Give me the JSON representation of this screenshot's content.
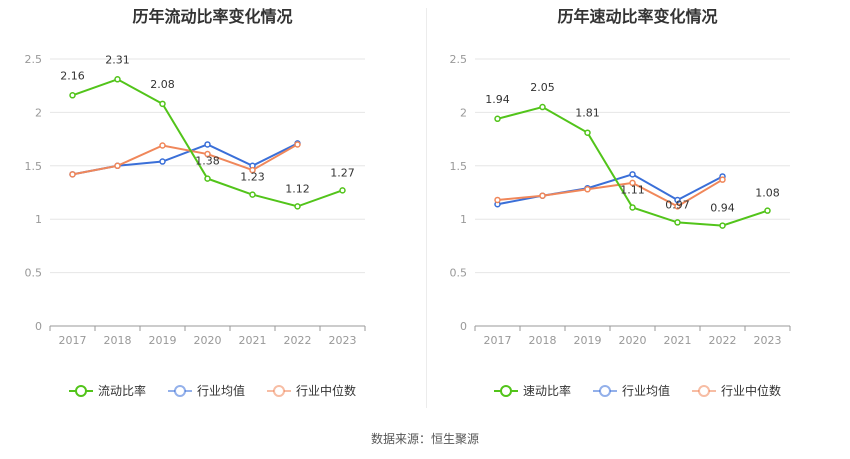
{
  "source_text": "数据来源：恒生聚源",
  "chart_data": [
    {
      "type": "line",
      "title": "历年流动比率变化情况",
      "categories": [
        "2017",
        "2018",
        "2019",
        "2020",
        "2021",
        "2022",
        "2023"
      ],
      "ylim": [
        0,
        2.5
      ],
      "yticks": [
        "0",
        "0.5",
        "1",
        "1.5",
        "2",
        "2.5"
      ],
      "grid": true,
      "legend_position": "bottom",
      "series": [
        {
          "name": "流动比率",
          "color": "#52c41a",
          "values": [
            2.16,
            2.31,
            2.08,
            1.38,
            1.23,
            1.12,
            1.27
          ],
          "labels": [
            "2.16",
            "2.31",
            "2.08",
            "1.38",
            "1.23",
            "1.12",
            "1.27"
          ]
        },
        {
          "name": "行业均值",
          "color": "#3a6fd8",
          "values": [
            1.42,
            1.5,
            1.54,
            1.7,
            1.5,
            1.71,
            null
          ]
        },
        {
          "name": "行业中位数",
          "color": "#f0875a",
          "values": [
            1.42,
            1.5,
            1.69,
            1.61,
            1.46,
            1.7,
            null
          ]
        }
      ]
    },
    {
      "type": "line",
      "title": "历年速动比率变化情况",
      "categories": [
        "2017",
        "2018",
        "2019",
        "2020",
        "2021",
        "2022",
        "2023"
      ],
      "ylim": [
        0,
        2.5
      ],
      "yticks": [
        "0",
        "0.5",
        "1",
        "1.5",
        "2",
        "2.5"
      ],
      "grid": true,
      "legend_position": "bottom",
      "series": [
        {
          "name": "速动比率",
          "color": "#52c41a",
          "values": [
            1.94,
            2.05,
            1.81,
            1.11,
            0.97,
            0.94,
            1.08
          ],
          "labels": [
            "1.94",
            "2.05",
            "1.81",
            "1.11",
            "0.97",
            "0.94",
            "1.08"
          ]
        },
        {
          "name": "行业均值",
          "color": "#3a6fd8",
          "values": [
            1.14,
            1.22,
            1.29,
            1.42,
            1.18,
            1.4,
            null
          ]
        },
        {
          "name": "行业中位数",
          "color": "#f0875a",
          "values": [
            1.18,
            1.22,
            1.28,
            1.34,
            1.12,
            1.37,
            null
          ]
        }
      ]
    }
  ]
}
